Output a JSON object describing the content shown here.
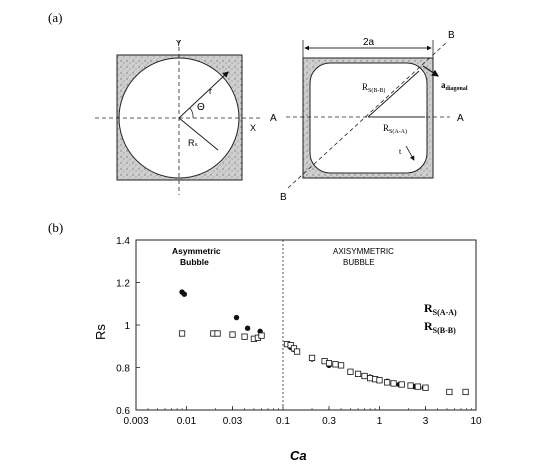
{
  "panel_a": {
    "label": "(a)",
    "left": {
      "y_axis": "Y",
      "x_axis": "X",
      "r": "r",
      "theta": "Θ",
      "rs": "Rₛ"
    },
    "right": {
      "width_label": "2a",
      "b_top": "B",
      "b_bottom": "B",
      "a_left": "A",
      "a_right": "A",
      "rs_bb": "R",
      "rs_bb_sub": "S(B-B)",
      "rs_aa": "R",
      "rs_aa_sub": "S(A-A)",
      "a_diag": "a",
      "a_diag_sub": "diagonal",
      "t": "t"
    }
  },
  "panel_b": {
    "label": "(b)"
  },
  "chart_data": {
    "type": "scatter",
    "xlabel": "Ca",
    "ylabel": "Rs",
    "x_scale": "log",
    "xlim": [
      0.003,
      10
    ],
    "ylim": [
      0.6,
      1.4
    ],
    "x_ticks": [
      0.003,
      0.01,
      0.03,
      0.1,
      0.3,
      1,
      3,
      10
    ],
    "x_tick_labels": [
      "0.003",
      "0.01",
      "0.03",
      "0.1",
      "0.3",
      "1",
      "3",
      "10"
    ],
    "y_ticks": [
      0.6,
      0.8,
      1.0,
      1.2,
      1.4
    ],
    "y_tick_labels": [
      "0.6",
      "0.8",
      "1",
      "1.2",
      "1.4"
    ],
    "divider_x": 0.1,
    "annotations": {
      "left_line1": "Asymmetric",
      "left_line2": "Bubble",
      "right_line1": "AXISYMMETRIC",
      "right_line2": "BUBBLE"
    },
    "legend": [
      {
        "main": "R",
        "sub": "S(A-A)"
      },
      {
        "main": "R",
        "sub": "S(B-B)"
      }
    ],
    "series": [
      {
        "name": "RS(A-A)",
        "marker": "filled-circle",
        "points": [
          [
            0.009,
            1.155
          ],
          [
            0.0095,
            1.145
          ],
          [
            0.033,
            1.035
          ],
          [
            0.043,
            0.985
          ],
          [
            0.058,
            0.97
          ],
          [
            0.12,
            0.895
          ],
          [
            0.13,
            0.885
          ],
          [
            0.2,
            0.84
          ],
          [
            0.3,
            0.81
          ],
          [
            0.5,
            0.78
          ],
          [
            0.8,
            0.755
          ],
          [
            1.2,
            0.735
          ],
          [
            1.6,
            0.72
          ],
          [
            2.3,
            0.71
          ],
          [
            2.9,
            0.705
          ]
        ]
      },
      {
        "name": "RS(B-B)",
        "marker": "open-square",
        "points": [
          [
            0.009,
            0.96
          ],
          [
            0.019,
            0.96
          ],
          [
            0.021,
            0.96
          ],
          [
            0.03,
            0.955
          ],
          [
            0.04,
            0.945
          ],
          [
            0.05,
            0.935
          ],
          [
            0.055,
            0.94
          ],
          [
            0.06,
            0.95
          ],
          [
            0.11,
            0.91
          ],
          [
            0.12,
            0.905
          ],
          [
            0.13,
            0.89
          ],
          [
            0.14,
            0.875
          ],
          [
            0.2,
            0.845
          ],
          [
            0.27,
            0.83
          ],
          [
            0.3,
            0.82
          ],
          [
            0.35,
            0.815
          ],
          [
            0.4,
            0.81
          ],
          [
            0.5,
            0.78
          ],
          [
            0.6,
            0.77
          ],
          [
            0.7,
            0.76
          ],
          [
            0.8,
            0.75
          ],
          [
            0.9,
            0.745
          ],
          [
            1.0,
            0.74
          ],
          [
            1.2,
            0.73
          ],
          [
            1.4,
            0.725
          ],
          [
            1.7,
            0.72
          ],
          [
            2.1,
            0.715
          ],
          [
            2.5,
            0.71
          ],
          [
            3.0,
            0.705
          ],
          [
            5.3,
            0.685
          ],
          [
            7.8,
            0.685
          ]
        ]
      }
    ]
  }
}
